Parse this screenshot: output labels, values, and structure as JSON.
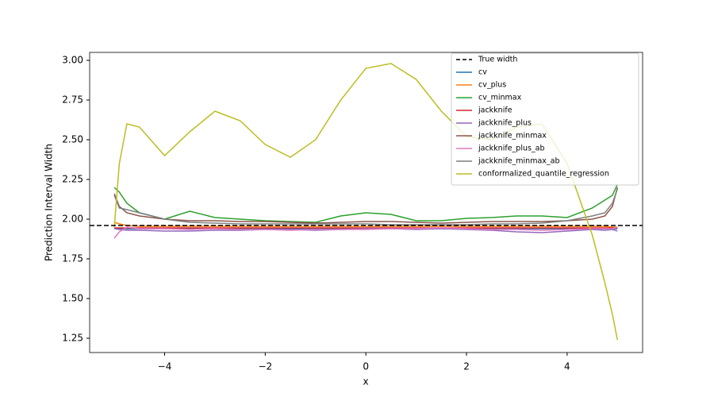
{
  "chart_data": {
    "type": "line",
    "xlabel": "x",
    "ylabel": "Prediction Interval Width",
    "x": [
      -5,
      -4.9,
      -4.75,
      -4.5,
      -4,
      -3.5,
      -3,
      -2.5,
      -2,
      -1.5,
      -1,
      -0.5,
      0,
      0.5,
      1,
      1.5,
      2,
      2.5,
      3,
      3.5,
      4,
      4.5,
      4.75,
      4.9,
      5
    ],
    "hline": {
      "name": "True width",
      "y": 1.96,
      "color": "#000000"
    },
    "series": [
      {
        "name": "cv",
        "color": "#1f77b4",
        "values": [
          1.94,
          1.94,
          1.94,
          1.94,
          1.94,
          1.94,
          1.94,
          1.94,
          1.94,
          1.94,
          1.94,
          1.94,
          1.94,
          1.94,
          1.94,
          1.94,
          1.94,
          1.94,
          1.94,
          1.94,
          1.94,
          1.94,
          1.94,
          1.94,
          1.94
        ]
      },
      {
        "name": "cv_plus",
        "color": "#ff7f0e",
        "values": [
          1.98,
          1.97,
          1.96,
          1.955,
          1.955,
          1.955,
          1.955,
          1.955,
          1.955,
          1.955,
          1.955,
          1.955,
          1.955,
          1.955,
          1.955,
          1.955,
          1.955,
          1.955,
          1.955,
          1.955,
          1.955,
          1.955,
          1.955,
          1.95,
          1.95
        ]
      },
      {
        "name": "cv_minmax",
        "color": "#2ca02c",
        "values": [
          2.2,
          2.17,
          2.1,
          2.04,
          2.0,
          2.05,
          2.01,
          2.0,
          1.99,
          1.985,
          1.98,
          2.02,
          2.04,
          2.03,
          1.99,
          1.99,
          2.005,
          2.01,
          2.02,
          2.02,
          2.01,
          2.07,
          2.12,
          2.15,
          2.22
        ]
      },
      {
        "name": "jackknife",
        "color": "#d62728",
        "values": [
          1.945,
          1.945,
          1.945,
          1.945,
          1.945,
          1.945,
          1.945,
          1.945,
          1.945,
          1.945,
          1.945,
          1.945,
          1.945,
          1.945,
          1.945,
          1.945,
          1.945,
          1.945,
          1.945,
          1.945,
          1.945,
          1.945,
          1.945,
          1.945,
          1.945
        ]
      },
      {
        "name": "jackknife_plus",
        "color": "#9467bd",
        "values": [
          1.94,
          1.935,
          1.93,
          1.93,
          1.925,
          1.925,
          1.93,
          1.93,
          1.935,
          1.935,
          1.93,
          1.935,
          1.94,
          1.94,
          1.935,
          1.94,
          1.935,
          1.93,
          1.92,
          1.915,
          1.925,
          1.935,
          1.93,
          1.935,
          1.925
        ]
      },
      {
        "name": "jackknife_minmax",
        "color": "#8c564b",
        "values": [
          2.16,
          2.08,
          2.04,
          2.02,
          2.0,
          1.99,
          1.99,
          1.985,
          1.985,
          1.98,
          1.975,
          1.98,
          1.985,
          1.985,
          1.98,
          1.975,
          1.98,
          1.985,
          1.985,
          1.985,
          1.99,
          2.0,
          2.02,
          2.08,
          2.2
        ]
      },
      {
        "name": "jackknife_plus_ab",
        "color": "#e377c2",
        "values": [
          1.88,
          1.92,
          1.95,
          1.94,
          1.94,
          1.935,
          1.94,
          1.935,
          1.935,
          1.93,
          1.935,
          1.935,
          1.935,
          1.94,
          1.94,
          1.945,
          1.94,
          1.935,
          1.935,
          1.93,
          1.935,
          1.94,
          1.94,
          1.94,
          1.95
        ]
      },
      {
        "name": "jackknife_minmax_ab",
        "color": "#7f7f7f",
        "values": [
          2.15,
          2.07,
          2.06,
          2.04,
          2.0,
          1.98,
          1.975,
          1.97,
          1.97,
          1.97,
          1.97,
          1.97,
          1.97,
          1.965,
          1.965,
          1.965,
          1.965,
          1.97,
          1.97,
          1.975,
          1.99,
          2.02,
          2.04,
          2.1,
          2.19
        ]
      },
      {
        "name": "conformalized_quantile_regression",
        "color": "#bcbd22",
        "values": [
          1.95,
          2.35,
          2.6,
          2.58,
          2.4,
          2.55,
          2.68,
          2.62,
          2.47,
          2.39,
          2.5,
          2.75,
          2.95,
          2.98,
          2.88,
          2.68,
          2.52,
          2.5,
          2.58,
          2.6,
          2.35,
          1.9,
          1.6,
          1.4,
          1.24
        ]
      }
    ],
    "xlim": [
      -5.49,
      5.5
    ],
    "ylim": [
      1.16,
      3.05
    ],
    "xticks": [
      {
        "value": -4,
        "label": "−4"
      },
      {
        "value": -2,
        "label": "−2"
      },
      0,
      2,
      4
    ],
    "yticks": [
      {
        "value": 1.25,
        "label": "1.25"
      },
      {
        "value": 1.5,
        "label": "1.50"
      },
      {
        "value": 1.75,
        "label": "1.75"
      },
      {
        "value": 2,
        "label": "2.00"
      },
      {
        "value": 2.25,
        "label": "2.25"
      },
      {
        "value": 2.5,
        "label": "2.50"
      },
      {
        "value": 2.75,
        "label": "2.75"
      },
      {
        "value": 3,
        "label": "3.00"
      }
    ],
    "legend": "upper right",
    "grid": false
  }
}
